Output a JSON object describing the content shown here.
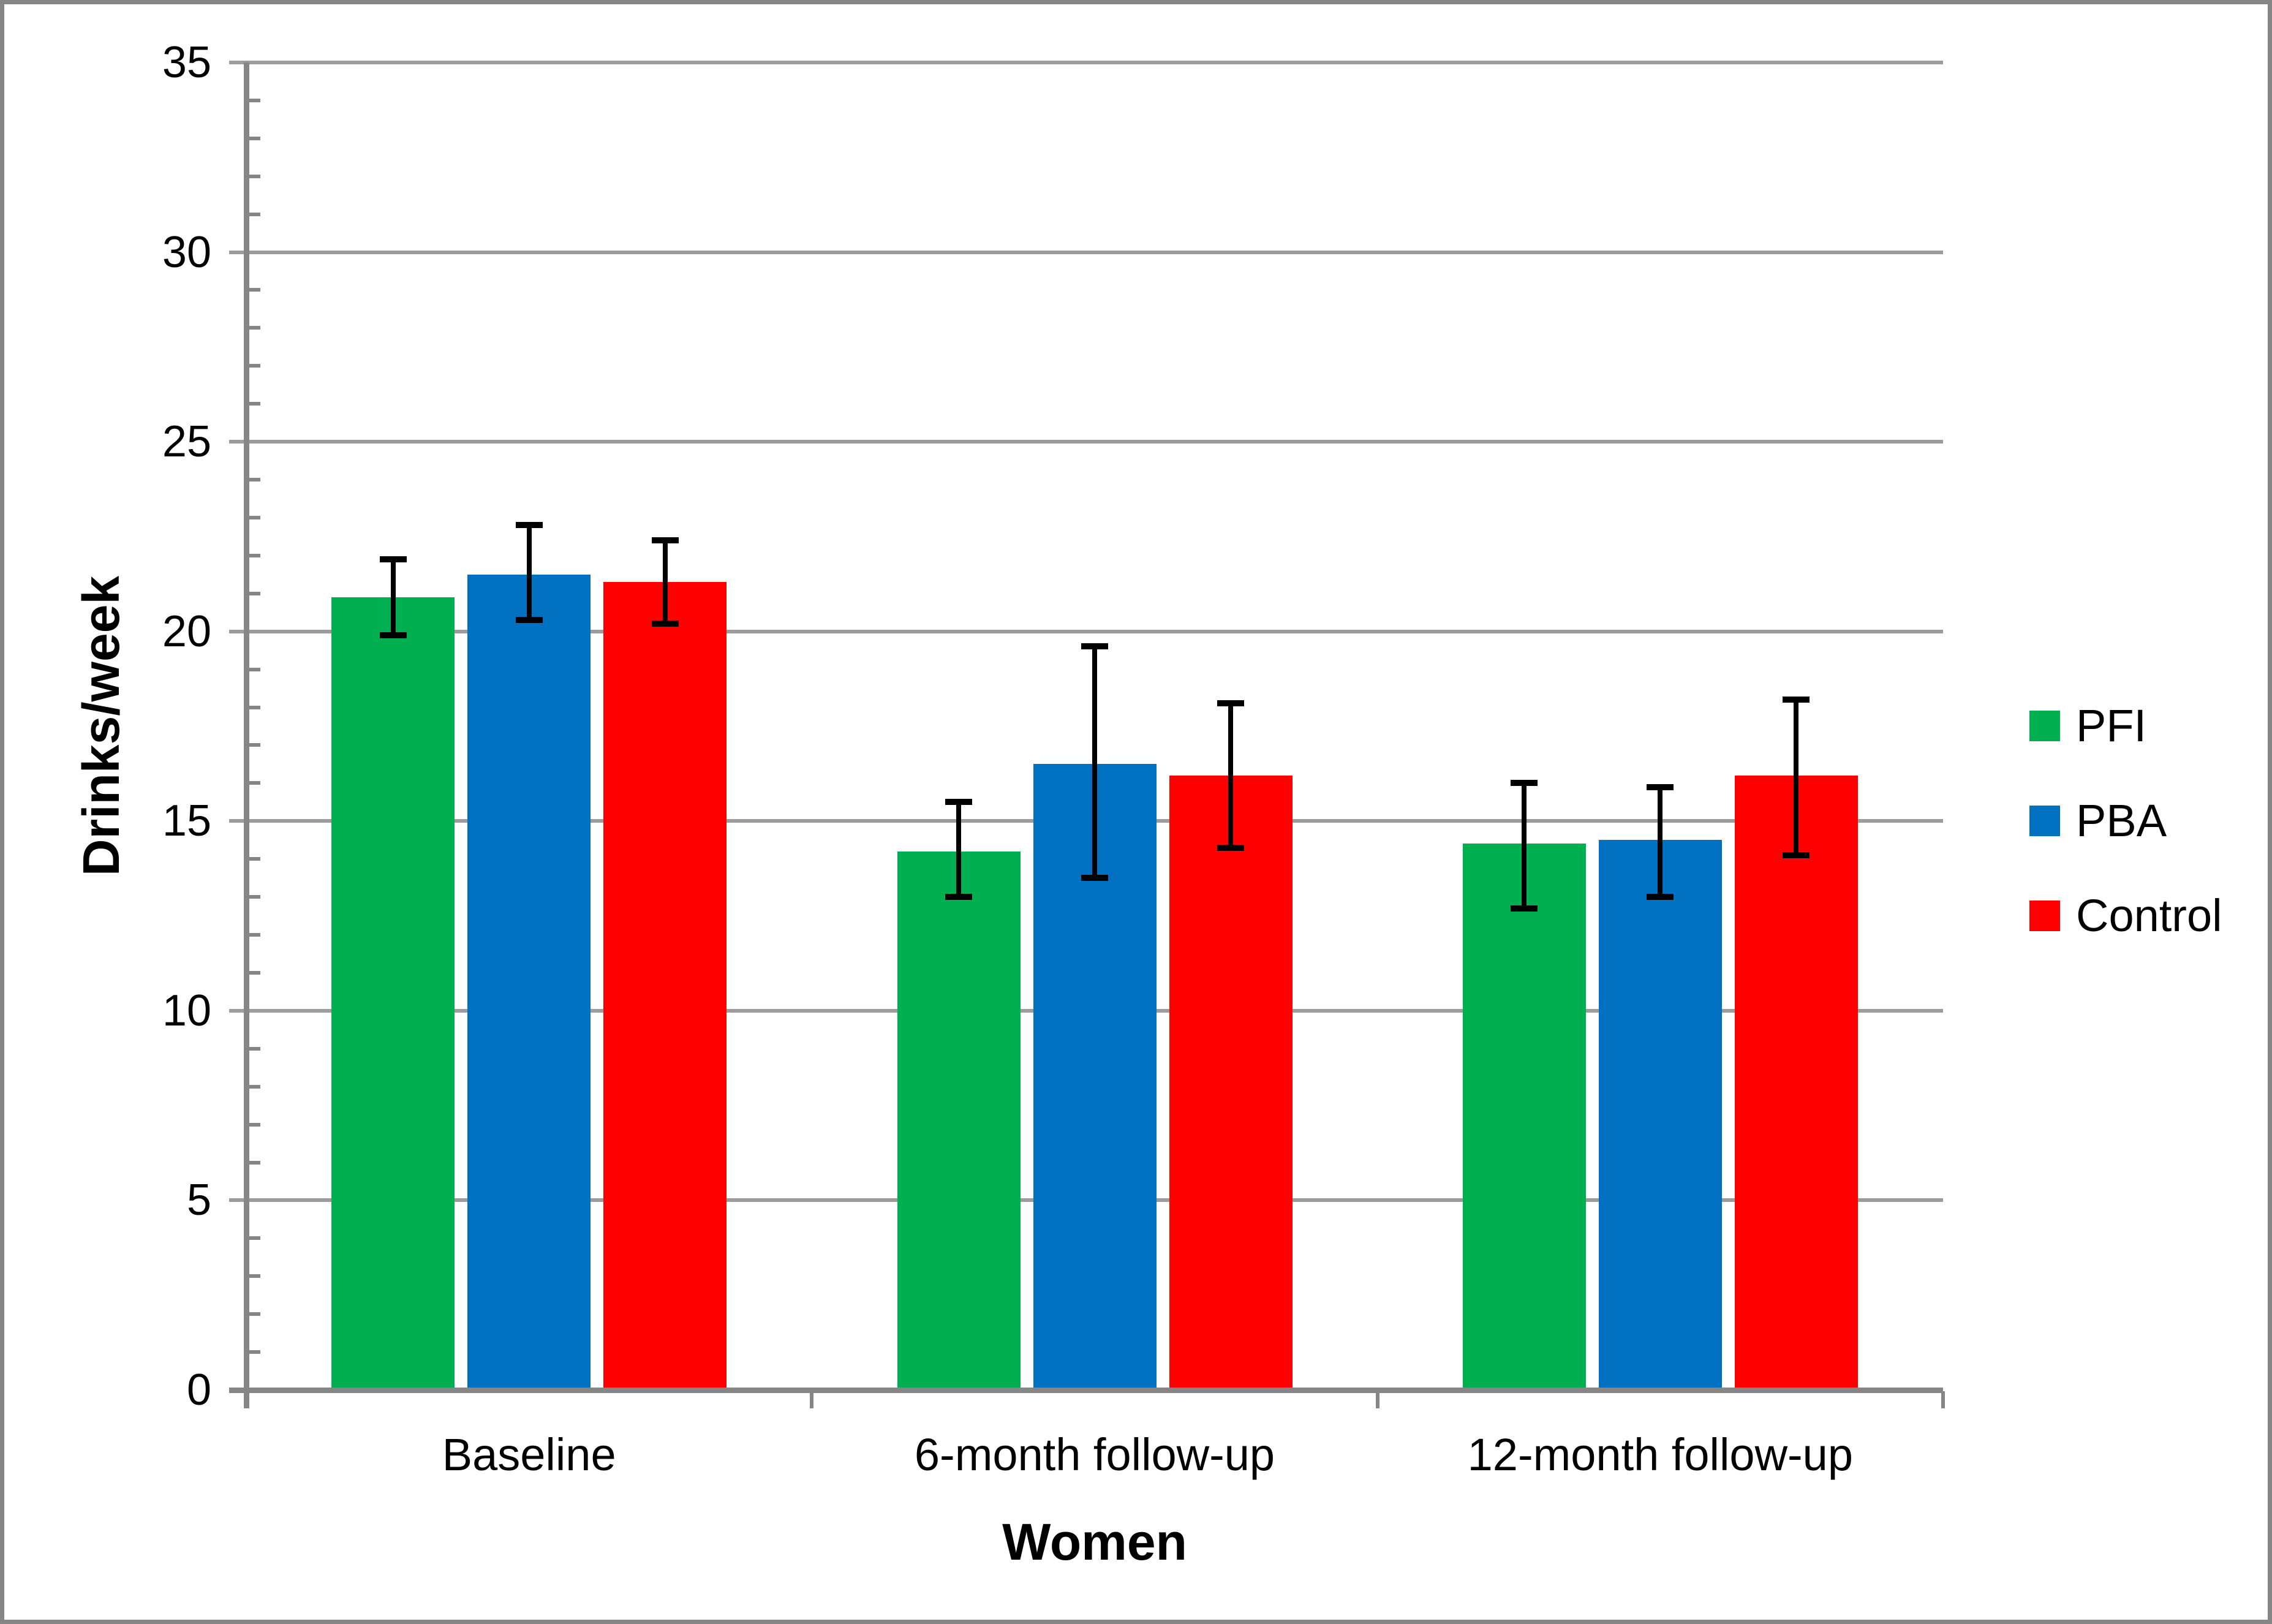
{
  "chart_data": {
    "type": "bar",
    "title": "",
    "categories": [
      "Baseline",
      "6-month follow-up",
      "12-month follow-up"
    ],
    "series": [
      {
        "name": "PFI",
        "color": "#00B050",
        "values": [
          20.9,
          14.2,
          14.4
        ],
        "err_low": [
          19.9,
          13.0,
          12.7
        ],
        "err_high": [
          21.9,
          15.5,
          16.0
        ]
      },
      {
        "name": "PBA",
        "color": "#0070C0",
        "values": [
          21.5,
          16.5,
          14.5
        ],
        "err_low": [
          20.3,
          13.5,
          13.0
        ],
        "err_high": [
          22.8,
          19.6,
          15.9
        ]
      },
      {
        "name": "Control",
        "color": "#FF0000",
        "values": [
          21.3,
          16.2,
          16.2
        ],
        "err_low": [
          20.2,
          14.3,
          14.1
        ],
        "err_high": [
          22.4,
          18.1,
          18.2
        ]
      }
    ],
    "xlabel": "Women",
    "ylabel": "Drinks/week",
    "ylim": [
      0,
      35
    ],
    "ytick_step": 5,
    "minor_tick_step": 1,
    "yticks": [
      "0",
      "5",
      "10",
      "15",
      "20",
      "25",
      "30",
      "35"
    ],
    "grid": true,
    "legend_position": "right",
    "error_bars": true,
    "colors": {
      "axis": "#868686",
      "gridline": "#9C9C9C",
      "frame_border": "#868686",
      "error_bar": "#000000",
      "text": "#000000"
    }
  }
}
